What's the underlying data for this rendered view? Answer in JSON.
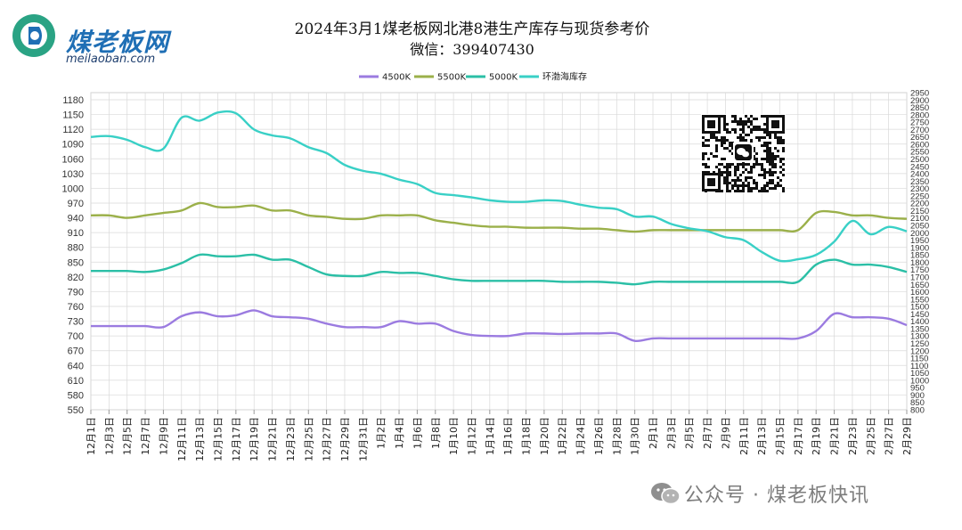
{
  "logo": {
    "brand": "煤老板网",
    "site": "meilaoban.com"
  },
  "title": {
    "line1": "2024年3月1煤老板网北港8港生产库存与现货参考价",
    "line2": "微信：399407430"
  },
  "watermark": {
    "text": "公众号 · 煤老板快讯"
  },
  "qr_icon": "wechat-qr-code",
  "colors": {
    "s4500": "#9b7be0",
    "s5500": "#9bb04a",
    "s5000": "#2bbfa6",
    "inventory": "#39d0c6",
    "grid": "#d9d9d9"
  },
  "chart_data": {
    "type": "line",
    "title": "2024年3月1煤老板网北港8港生产库存与现货参考价",
    "legend": {
      "position": "top",
      "items": [
        "4500K",
        "5500K",
        "5000K",
        "环渤海库存"
      ]
    },
    "grid": true,
    "x": [
      "12月1日",
      "12月3日",
      "12月5日",
      "12月7日",
      "12月9日",
      "12月11日",
      "12月13日",
      "12月15日",
      "12月17日",
      "12月19日",
      "12月21日",
      "12月23日",
      "12月25日",
      "12月27日",
      "12月29日",
      "12月31日",
      "1月2日",
      "1月4日",
      "1月6日",
      "1月8日",
      "1月10日",
      "1月12日",
      "1月14日",
      "1月16日",
      "1月18日",
      "1月20日",
      "1月22日",
      "1月24日",
      "1月26日",
      "1月28日",
      "1月30日",
      "2月1日",
      "2月3日",
      "2月5日",
      "2月7日",
      "2月9日",
      "2月11日",
      "2月13日",
      "2月15日",
      "2月17日",
      "2月19日",
      "2月21日",
      "2月23日",
      "2月25日",
      "2月27日",
      "2月29日"
    ],
    "y_left": {
      "min": 550,
      "max": 1180,
      "step": 30
    },
    "y_right": {
      "min": 800,
      "max": 2950,
      "step": 50
    },
    "series": [
      {
        "name": "4500K",
        "axis": "left",
        "values": [
          720,
          720,
          720,
          720,
          718,
          740,
          748,
          740,
          742,
          752,
          740,
          738,
          735,
          725,
          718,
          718,
          718,
          730,
          725,
          725,
          710,
          702,
          700,
          700,
          705,
          705,
          704,
          705,
          705,
          705,
          690,
          695,
          695,
          695,
          695,
          695,
          695,
          695,
          695,
          695,
          710,
          745,
          738,
          738,
          735,
          722
        ]
      },
      {
        "name": "5500K",
        "axis": "left",
        "values": [
          945,
          945,
          940,
          945,
          950,
          955,
          970,
          962,
          962,
          965,
          955,
          955,
          945,
          942,
          938,
          938,
          945,
          945,
          945,
          935,
          930,
          925,
          922,
          922,
          920,
          920,
          920,
          918,
          918,
          915,
          912,
          915,
          915,
          915,
          915,
          915,
          915,
          915,
          915,
          915,
          950,
          952,
          945,
          945,
          940,
          938
        ]
      },
      {
        "name": "5000K",
        "axis": "left",
        "values": [
          832,
          832,
          832,
          830,
          835,
          848,
          865,
          862,
          862,
          865,
          855,
          855,
          840,
          825,
          822,
          822,
          830,
          828,
          828,
          822,
          815,
          812,
          812,
          812,
          812,
          812,
          810,
          810,
          810,
          808,
          805,
          810,
          810,
          810,
          810,
          810,
          810,
          810,
          810,
          810,
          845,
          855,
          845,
          845,
          840,
          830
        ]
      },
      {
        "name": "环渤海库存",
        "axis": "right",
        "values": [
          2650,
          2655,
          2630,
          2580,
          2570,
          2780,
          2760,
          2815,
          2810,
          2700,
          2660,
          2640,
          2580,
          2540,
          2460,
          2420,
          2400,
          2360,
          2330,
          2270,
          2255,
          2240,
          2220,
          2210,
          2210,
          2220,
          2215,
          2190,
          2170,
          2160,
          2110,
          2110,
          2060,
          2030,
          2010,
          1970,
          1950,
          1870,
          1810,
          1820,
          1850,
          1940,
          2080,
          1990,
          2040,
          2010
        ]
      }
    ]
  }
}
